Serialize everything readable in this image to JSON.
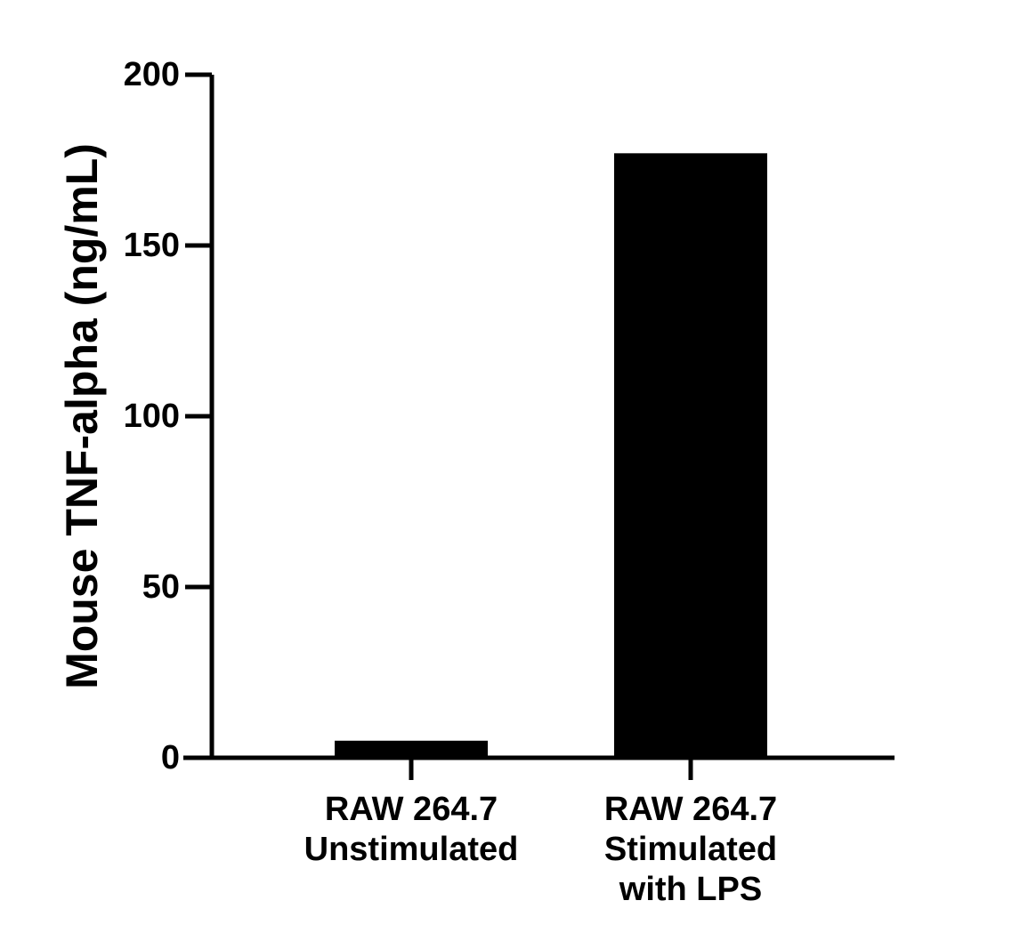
{
  "chart_data": {
    "type": "bar",
    "title": "",
    "xlabel": "",
    "ylabel": "Mouse TNF-alpha (ng/mL)",
    "categories": [
      [
        "RAW 264.7",
        "Unstimulated"
      ],
      [
        "RAW 264.7",
        "Stimulated",
        "with LPS"
      ]
    ],
    "values": [
      5,
      177
    ],
    "ylim": [
      0,
      200
    ],
    "yticks": [
      0,
      50,
      100,
      150,
      200
    ],
    "ytick_labels": [
      "0",
      "50",
      "100",
      "150",
      "200"
    ],
    "grid": false,
    "legend": "none",
    "colors": {
      "bar": "#000000",
      "axis": "#000000",
      "background": "#ffffff"
    }
  }
}
